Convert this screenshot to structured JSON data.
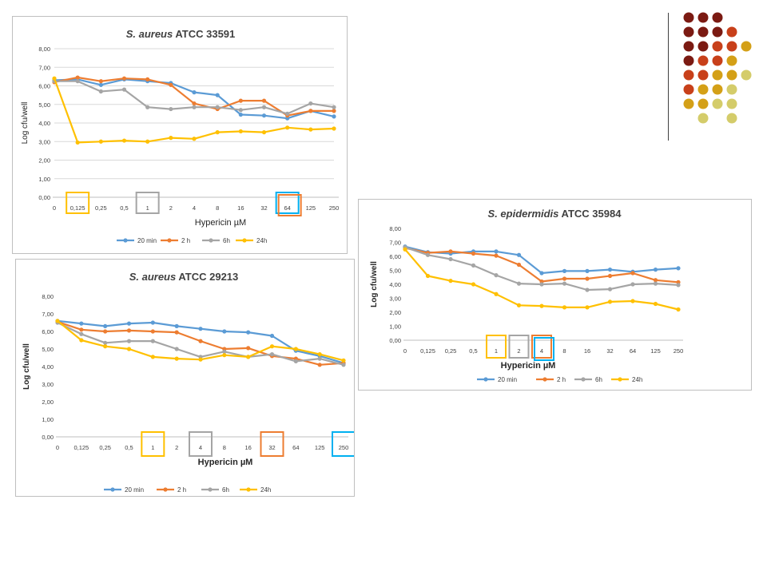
{
  "chart_data": [
    {
      "type": "line",
      "id": "c1",
      "title_italic": "S. aureus",
      "title_rest": "ATCC 33591",
      "xlabel": "Hypericin µM",
      "ylabel": "Log cfu/well",
      "categories": [
        "0",
        "0,125",
        "0,25",
        "0,5",
        "1",
        "2",
        "4",
        "8",
        "16",
        "32",
        "64",
        "125",
        "250"
      ],
      "ylim": [
        0,
        8
      ],
      "yticks": [
        "0,00",
        "1,00",
        "2,00",
        "3,00",
        "4,00",
        "5,00",
        "6,00",
        "7,00",
        "8,00"
      ],
      "grid": true,
      "legend": "bottom",
      "series": [
        {
          "name": "20 min",
          "color": "#5b9bd5",
          "values": [
            6.3,
            6.35,
            6.05,
            6.35,
            6.25,
            6.15,
            5.65,
            5.5,
            4.45,
            4.4,
            4.25,
            4.65,
            4.35
          ]
        },
        {
          "name": "2 h",
          "color": "#ed7d31",
          "values": [
            6.2,
            6.45,
            6.25,
            6.4,
            6.35,
            6.05,
            5.05,
            4.75,
            5.2,
            5.2,
            4.4,
            4.65,
            4.65
          ]
        },
        {
          "name": "6h",
          "color": "#a5a5a5",
          "values": [
            6.25,
            6.25,
            5.7,
            5.8,
            4.85,
            4.75,
            4.85,
            4.85,
            4.7,
            4.85,
            4.5,
            5.05,
            4.85
          ]
        },
        {
          "name": "24h",
          "color": "#ffc000",
          "values": [
            6.4,
            2.95,
            3.0,
            3.05,
            3.0,
            3.2,
            3.15,
            3.5,
            3.55,
            3.5,
            3.75,
            3.65,
            3.7
          ]
        }
      ],
      "highlights": [
        {
          "index": 1,
          "color": "#ffc000"
        },
        {
          "index": 4,
          "color": "#a5a5a5"
        },
        {
          "index": 10,
          "color": "#00b0f0"
        },
        {
          "index": 10,
          "color": "#ed7d31"
        }
      ]
    },
    {
      "type": "line",
      "id": "c2",
      "title_italic": "S. aureus",
      "title_rest": "ATCC 29213",
      "xlabel": "Hypericin µM",
      "ylabel": "Log cfu/well",
      "categories": [
        "0",
        "0,125",
        "0,25",
        "0,5",
        "1",
        "2",
        "4",
        "8",
        "16",
        "32",
        "64",
        "125",
        "250"
      ],
      "ylim": [
        0,
        8
      ],
      "yticks": [
        "0,00",
        "1,00",
        "2,00",
        "3,00",
        "4,00",
        "5,00",
        "6,00",
        "7,00",
        "8,00"
      ],
      "grid": false,
      "legend": "bottom",
      "series": [
        {
          "name": "20 min",
          "color": "#5b9bd5",
          "values": [
            6.6,
            6.45,
            6.3,
            6.45,
            6.5,
            6.3,
            6.15,
            6.0,
            5.95,
            5.75,
            4.9,
            4.6,
            4.2
          ]
        },
        {
          "name": "2 h",
          "color": "#ed7d31",
          "values": [
            6.55,
            6.1,
            6.0,
            6.05,
            6.0,
            5.95,
            5.45,
            5.0,
            5.05,
            4.6,
            4.45,
            4.1,
            4.2
          ]
        },
        {
          "name": "6h",
          "color": "#a5a5a5",
          "values": [
            6.5,
            5.85,
            5.35,
            5.45,
            5.45,
            5.0,
            4.55,
            4.85,
            4.55,
            4.7,
            4.3,
            4.45,
            4.1
          ]
        },
        {
          "name": "24h",
          "color": "#ffc000",
          "values": [
            6.6,
            5.5,
            5.15,
            5.0,
            4.55,
            4.45,
            4.4,
            4.65,
            4.55,
            5.15,
            5.0,
            4.7,
            4.35
          ]
        }
      ],
      "highlights": [
        {
          "index": 4,
          "color": "#ffc000"
        },
        {
          "index": 6,
          "color": "#a5a5a5"
        },
        {
          "index": 9,
          "color": "#ed7d31"
        },
        {
          "index": 12,
          "color": "#00b0f0"
        }
      ]
    },
    {
      "type": "line",
      "id": "c3",
      "title_italic": "S. epidermidis",
      "title_rest": "ATCC 35984",
      "xlabel": "Hypericin µM",
      "ylabel": "Log cfu/well",
      "categories": [
        "0",
        "0,125",
        "0,25",
        "0,5",
        "1",
        "2",
        "4",
        "8",
        "16",
        "32",
        "64",
        "125",
        "250"
      ],
      "ylim": [
        0,
        8
      ],
      "yticks": [
        "0,00",
        "1,00",
        "2,00",
        "3,00",
        "4,00",
        "5,00",
        "6,00",
        "7,00",
        "8,00"
      ],
      "grid": false,
      "legend": "bottom",
      "series": [
        {
          "name": "20 min",
          "color": "#5b9bd5",
          "values": [
            6.7,
            6.3,
            6.2,
            6.35,
            6.35,
            6.1,
            4.8,
            4.95,
            4.95,
            5.05,
            4.9,
            5.05,
            5.15
          ]
        },
        {
          "name": "2 h",
          "color": "#ed7d31",
          "values": [
            6.6,
            6.25,
            6.35,
            6.2,
            6.05,
            5.4,
            4.2,
            4.4,
            4.4,
            4.6,
            4.8,
            4.3,
            4.15
          ]
        },
        {
          "name": "6h",
          "color": "#a5a5a5",
          "values": [
            6.65,
            6.1,
            5.8,
            5.35,
            4.65,
            4.05,
            4.0,
            4.05,
            3.6,
            3.65,
            4.0,
            4.05,
            3.95
          ]
        },
        {
          "name": "24h",
          "color": "#ffc000",
          "values": [
            6.5,
            4.6,
            4.25,
            4.0,
            3.3,
            2.5,
            2.45,
            2.35,
            2.35,
            2.75,
            2.8,
            2.6,
            2.2
          ]
        }
      ],
      "highlights": [
        {
          "index": 4,
          "color": "#ffc000"
        },
        {
          "index": 5,
          "color": "#a5a5a5"
        },
        {
          "index": 6,
          "color": "#ed7d31"
        },
        {
          "index": 6,
          "color": "#00b0f0"
        }
      ]
    }
  ],
  "decor": {
    "dot_rows": [
      [
        "#7b1a12",
        "#7b1a12",
        "#7b1a12"
      ],
      [
        "#7b1a12",
        "#7b1a12",
        "#7b1a12",
        "#c8401a"
      ],
      [
        "#7b1a12",
        "#7b1a12",
        "#c8401a",
        "#c8401a",
        "#d4a017"
      ],
      [
        "#7b1a12",
        "#c8401a",
        "#c8401a",
        "#d4a017"
      ],
      [
        "#c8401a",
        "#c8401a",
        "#d4a017",
        "#d4a017",
        "#d4cc6a"
      ],
      [
        "#c8401a",
        "#d4a017",
        "#d4a017",
        "#d4cc6a"
      ],
      [
        "#d4a017",
        "#d4a017",
        "#d4cc6a",
        "#d4cc6a"
      ],
      [
        "#d4cc6a",
        "#d4cc6a"
      ]
    ]
  }
}
